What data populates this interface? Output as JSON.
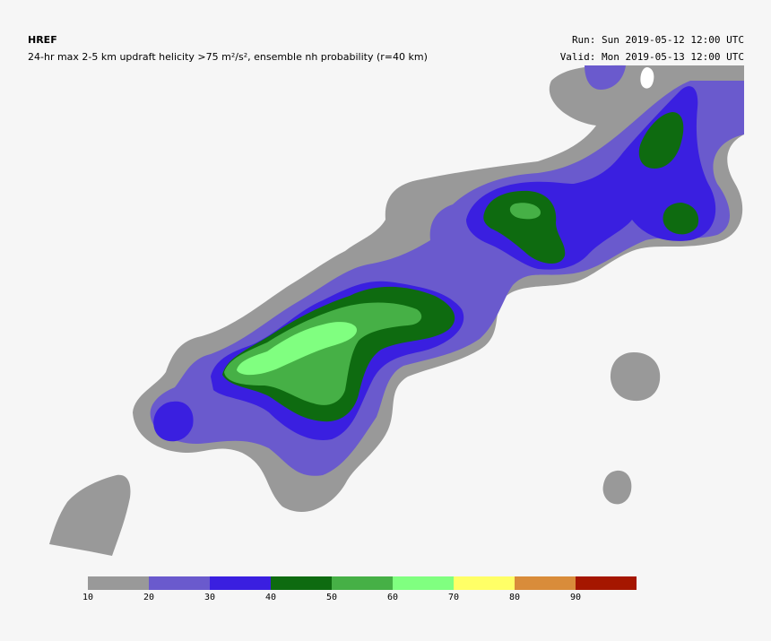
{
  "header": {
    "model": "HREF",
    "description": "24-hr max 2-5 km updraft helicity >75 m²/s², ensemble nh probability (r=40 km)",
    "run": "Run: Sun 2019-05-12 12:00 UTC",
    "valid": "Valid: Mon 2019-05-13 12:00 UTC"
  },
  "colorbar": {
    "bins": [
      {
        "from": 10,
        "to": 20,
        "color": "#999999"
      },
      {
        "from": 20,
        "to": 30,
        "color": "#6a5acd"
      },
      {
        "from": 30,
        "to": 40,
        "color": "#3a1fe0"
      },
      {
        "from": 40,
        "to": 50,
        "color": "#0e6b10"
      },
      {
        "from": 50,
        "to": 60,
        "color": "#46b046"
      },
      {
        "from": 60,
        "to": 70,
        "color": "#80ff80"
      },
      {
        "from": 70,
        "to": 80,
        "color": "#ffff66"
      },
      {
        "from": 80,
        "to": 90,
        "color": "#d98c3a"
      },
      {
        "from": 90,
        "to": 100,
        "color": "#a51600"
      }
    ],
    "ticks": [
      "10",
      "20",
      "30",
      "40",
      "50",
      "60",
      "70",
      "80",
      "90"
    ]
  }
}
